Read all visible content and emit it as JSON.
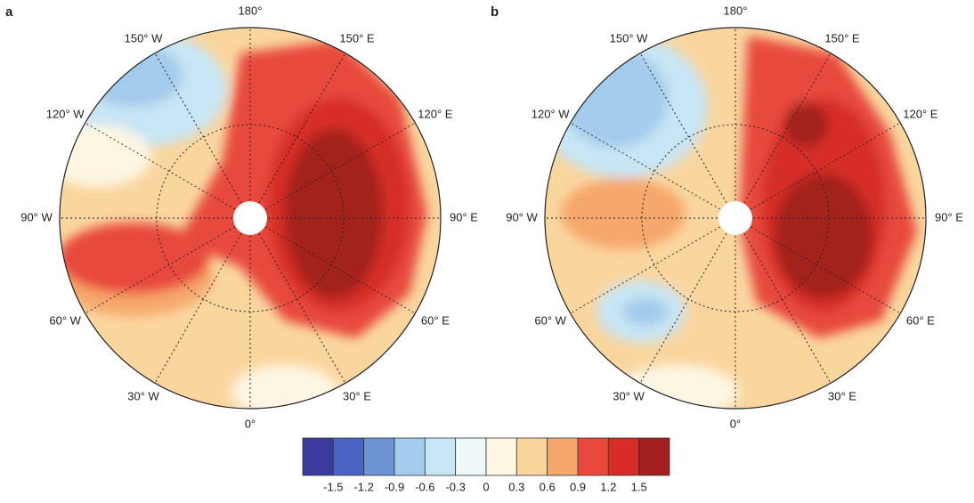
{
  "panels": [
    {
      "label": "a",
      "lon_labels": [
        "180°",
        "150° E",
        "120° E",
        "90° E",
        "60° E",
        "30° E",
        "0°",
        "30° W",
        "60° W",
        "90° W",
        "120° W",
        "150° W"
      ]
    },
    {
      "label": "b",
      "lon_labels": [
        "180°",
        "150° E",
        "120° E",
        "90° E",
        "60° E",
        "30° E",
        "0°",
        "30° W",
        "60° W",
        "90° W",
        "120° W",
        "150° W"
      ]
    }
  ],
  "colorbar": {
    "colors": [
      "#3b3b9e",
      "#4b64c2",
      "#6e93d3",
      "#a3cbeb",
      "#c7e5f4",
      "#eef8fb",
      "#fdf6e3",
      "#fad69f",
      "#f6a76c",
      "#e8493c",
      "#d62d27",
      "#a3201e"
    ],
    "ticks": [
      -1.5,
      -1.2,
      -0.9,
      -0.6,
      -0.3,
      0,
      0.3,
      0.6,
      0.9,
      1.2,
      1.5
    ]
  }
}
